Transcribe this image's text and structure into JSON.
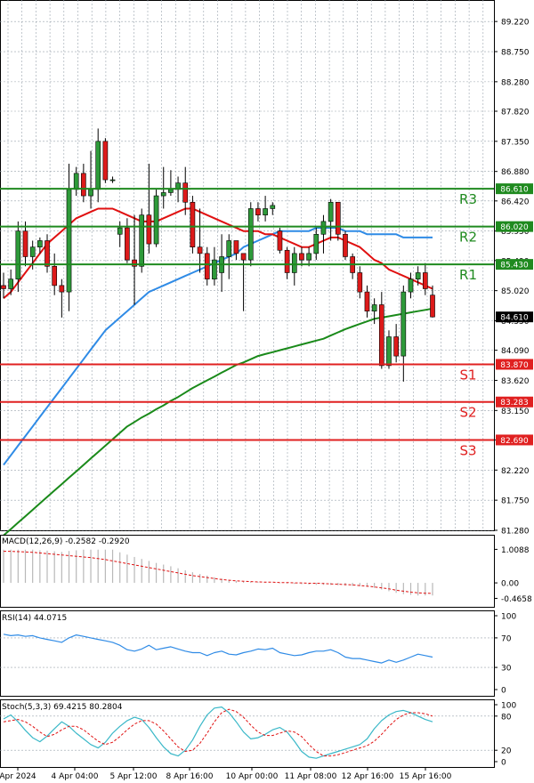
{
  "chart_data": {
    "type": "candlestick",
    "price_panel": {
      "ylim": [
        81.28,
        89.5
      ],
      "ticks": [
        "89.220",
        "88.750",
        "88.280",
        "87.820",
        "87.350",
        "86.880",
        "86.420",
        "85.950",
        "85.490",
        "85.020",
        "84.550",
        "84.090",
        "83.620",
        "83.150",
        "82.690",
        "82.220",
        "81.750",
        "81.280"
      ],
      "current_price": {
        "label": "84.610",
        "value": 84.61
      },
      "levels": [
        {
          "name": "R3",
          "value": 86.61,
          "label": "86.610",
          "color": "#1f8a1f"
        },
        {
          "name": "R2",
          "value": 86.02,
          "label": "86.020",
          "color": "#1f8a1f"
        },
        {
          "name": "R1",
          "value": 85.43,
          "label": "85.430",
          "color": "#1f8a1f"
        },
        {
          "name": "S1",
          "value": 83.87,
          "label": "83.870",
          "color": "#e02020"
        },
        {
          "name": "S2",
          "value": 83.283,
          "label": "83.283",
          "color": "#e02020"
        },
        {
          "name": "S3",
          "value": 82.69,
          "label": "82.690",
          "color": "#e02020"
        }
      ],
      "candles": [
        [
          85.1,
          85.3,
          84.9,
          85.05
        ],
        [
          85.05,
          85.35,
          84.95,
          85.2
        ],
        [
          85.2,
          86.1,
          85.0,
          85.95
        ],
        [
          85.95,
          86.1,
          85.4,
          85.55
        ],
        [
          85.55,
          85.8,
          85.35,
          85.7
        ],
        [
          85.7,
          85.85,
          85.6,
          85.8
        ],
        [
          85.8,
          85.9,
          85.3,
          85.4
        ],
        [
          85.4,
          85.6,
          84.95,
          85.1
        ],
        [
          85.1,
          85.2,
          84.6,
          85.0
        ],
        [
          85.0,
          87.0,
          84.7,
          86.6
        ],
        [
          86.6,
          86.95,
          86.5,
          86.85
        ],
        [
          86.85,
          87.0,
          86.4,
          86.5
        ],
        [
          86.5,
          87.2,
          86.3,
          86.6
        ],
        [
          86.6,
          87.55,
          86.4,
          87.35
        ],
        [
          87.35,
          87.4,
          86.7,
          86.75
        ],
        [
          86.75,
          86.8,
          86.7,
          86.75
        ],
        [
          85.9,
          86.1,
          85.7,
          86.0
        ],
        [
          86.0,
          86.15,
          85.45,
          85.5
        ],
        [
          85.5,
          86.2,
          84.8,
          85.4
        ],
        [
          85.4,
          86.3,
          85.3,
          86.2
        ],
        [
          86.2,
          87.0,
          85.6,
          85.75
        ],
        [
          85.75,
          86.6,
          85.7,
          86.5
        ],
        [
          86.5,
          86.95,
          86.3,
          86.55
        ],
        [
          86.55,
          86.9,
          86.5,
          86.6
        ],
        [
          86.6,
          86.8,
          86.4,
          86.7
        ],
        [
          86.7,
          86.95,
          86.2,
          86.4
        ],
        [
          86.4,
          86.5,
          85.6,
          85.7
        ],
        [
          85.7,
          86.3,
          85.3,
          85.6
        ],
        [
          85.6,
          85.7,
          85.1,
          85.2
        ],
        [
          85.2,
          85.7,
          85.1,
          85.5
        ],
        [
          85.3,
          85.9,
          85.0,
          85.55
        ],
        [
          85.55,
          85.9,
          85.2,
          85.8
        ],
        [
          85.8,
          85.8,
          85.5,
          85.6
        ],
        [
          85.6,
          85.6,
          84.7,
          85.5
        ],
        [
          85.5,
          86.4,
          85.4,
          86.3
        ],
        [
          86.3,
          86.4,
          86.1,
          86.2
        ],
        [
          86.2,
          86.5,
          86.1,
          86.3
        ],
        [
          86.3,
          86.4,
          86.2,
          86.35
        ],
        [
          85.95,
          86.0,
          85.6,
          85.65
        ],
        [
          85.65,
          85.7,
          85.2,
          85.3
        ],
        [
          85.3,
          85.7,
          85.1,
          85.6
        ],
        [
          85.6,
          85.7,
          85.4,
          85.5
        ],
        [
          85.5,
          85.7,
          85.4,
          85.6
        ],
        [
          85.6,
          86.0,
          85.5,
          85.9
        ],
        [
          85.9,
          86.2,
          85.6,
          86.1
        ],
        [
          86.1,
          86.45,
          85.8,
          86.4
        ],
        [
          86.4,
          86.4,
          85.8,
          85.9
        ],
        [
          85.9,
          85.95,
          85.5,
          85.55
        ],
        [
          85.55,
          85.6,
          85.2,
          85.3
        ],
        [
          85.3,
          85.4,
          84.9,
          85.0
        ],
        [
          85.0,
          85.1,
          84.6,
          84.7
        ],
        [
          84.7,
          84.9,
          84.5,
          84.8
        ],
        [
          84.8,
          85.0,
          83.8,
          83.85
        ],
        [
          83.85,
          84.4,
          83.8,
          84.3
        ],
        [
          84.3,
          84.5,
          83.9,
          84.0
        ],
        [
          84.0,
          85.1,
          83.6,
          85.0
        ],
        [
          85.0,
          85.3,
          84.9,
          85.2
        ],
        [
          85.2,
          85.4,
          85.1,
          85.3
        ],
        [
          85.3,
          85.45,
          84.95,
          85.05
        ],
        [
          84.95,
          85.1,
          84.6,
          84.61
        ]
      ],
      "ma_fast": [
        84.9,
        85.0,
        85.15,
        85.3,
        85.45,
        85.6,
        85.75,
        85.85,
        85.95,
        86.05,
        86.15,
        86.2,
        86.25,
        86.3,
        86.3,
        86.3,
        86.25,
        86.2,
        86.15,
        86.1,
        86.1,
        86.1,
        86.15,
        86.2,
        86.25,
        86.3,
        86.3,
        86.25,
        86.2,
        86.15,
        86.1,
        86.05,
        86.0,
        85.95,
        85.95,
        85.95,
        85.9,
        85.9,
        85.85,
        85.8,
        85.75,
        85.7,
        85.7,
        85.75,
        85.8,
        85.85,
        85.85,
        85.8,
        85.75,
        85.7,
        85.6,
        85.5,
        85.45,
        85.35,
        85.3,
        85.25,
        85.2,
        85.15,
        85.1,
        85.05
      ],
      "ma_mid": [
        82.3,
        82.45,
        82.6,
        82.75,
        82.9,
        83.05,
        83.2,
        83.35,
        83.5,
        83.65,
        83.8,
        83.95,
        84.1,
        84.25,
        84.4,
        84.5,
        84.6,
        84.7,
        84.8,
        84.9,
        85.0,
        85.05,
        85.1,
        85.15,
        85.2,
        85.25,
        85.3,
        85.35,
        85.4,
        85.45,
        85.5,
        85.55,
        85.6,
        85.7,
        85.75,
        85.8,
        85.85,
        85.9,
        85.95,
        85.95,
        85.95,
        85.95,
        85.95,
        86.0,
        86.0,
        86.0,
        86.0,
        85.95,
        85.95,
        85.95,
        85.9,
        85.9,
        85.9,
        85.9,
        85.9,
        85.85,
        85.85,
        85.85,
        85.85,
        85.85
      ],
      "ma_slow": [
        81.2,
        81.3,
        81.4,
        81.5,
        81.6,
        81.7,
        81.8,
        81.9,
        82.0,
        82.1,
        82.2,
        82.3,
        82.4,
        82.5,
        82.6,
        82.7,
        82.8,
        82.9,
        82.97,
        83.04,
        83.1,
        83.17,
        83.23,
        83.3,
        83.36,
        83.43,
        83.5,
        83.56,
        83.62,
        83.68,
        83.74,
        83.8,
        83.86,
        83.9,
        83.95,
        84.0,
        84.03,
        84.06,
        84.09,
        84.12,
        84.15,
        84.18,
        84.21,
        84.24,
        84.27,
        84.32,
        84.37,
        84.42,
        84.46,
        84.5,
        84.54,
        84.58,
        84.6,
        84.62,
        84.64,
        84.66,
        84.68,
        84.7,
        84.72,
        84.74
      ]
    },
    "x_labels": [
      "Apr 2024",
      "4 Apr 04:00",
      "5 Apr 12:00",
      "8 Apr 16:00",
      "10 Apr 00:00",
      "11 Apr 08:00",
      "12 Apr 16:00",
      "15 Apr 16:00"
    ],
    "macd": {
      "title": "MACD(12,26,9) -0.2582 -0.2920",
      "ticks": [
        "1.0088",
        "0.00",
        "-0.4658"
      ],
      "ylim": [
        -0.56,
        1.1
      ],
      "histogram": [
        1.0,
        1.0,
        1.0,
        1.0,
        1.0,
        0.98,
        0.97,
        0.95,
        0.93,
        0.96,
        0.98,
        1.0,
        1.0,
        1.0,
        1.0,
        1.0,
        0.92,
        0.85,
        0.78,
        0.72,
        0.66,
        0.6,
        0.55,
        0.5,
        0.44,
        0.38,
        0.32,
        0.27,
        0.22,
        0.17,
        0.13,
        0.09,
        0.06,
        0.04,
        0.03,
        0.02,
        0.01,
        0.0,
        -0.01,
        -0.02,
        -0.03,
        -0.04,
        -0.05,
        -0.06,
        -0.06,
        -0.06,
        -0.07,
        -0.08,
        -0.09,
        -0.1,
        -0.12,
        -0.15,
        -0.2,
        -0.25,
        -0.3,
        -0.34,
        -0.36,
        -0.38,
        -0.38,
        -0.38
      ],
      "signal": [
        0.95,
        0.95,
        0.94,
        0.93,
        0.92,
        0.9,
        0.88,
        0.86,
        0.84,
        0.82,
        0.8,
        0.78,
        0.76,
        0.73,
        0.7,
        0.66,
        0.62,
        0.58,
        0.54,
        0.5,
        0.46,
        0.42,
        0.38,
        0.34,
        0.3,
        0.26,
        0.22,
        0.19,
        0.16,
        0.13,
        0.1,
        0.08,
        0.06,
        0.05,
        0.04,
        0.03,
        0.02,
        0.02,
        0.01,
        0.01,
        0.0,
        0.0,
        -0.01,
        -0.01,
        -0.02,
        -0.03,
        -0.04,
        -0.05,
        -0.06,
        -0.08,
        -0.1,
        -0.12,
        -0.15,
        -0.18,
        -0.22,
        -0.25,
        -0.28,
        -0.3,
        -0.31,
        -0.32
      ]
    },
    "rsi": {
      "title": "RSI(14) 44.0715",
      "ticks": [
        "100",
        "70",
        "30",
        "0"
      ],
      "ylim": [
        0,
        100
      ],
      "values": [
        75,
        73,
        74,
        72,
        73,
        70,
        68,
        66,
        64,
        70,
        74,
        72,
        70,
        68,
        66,
        64,
        60,
        54,
        52,
        55,
        60,
        54,
        56,
        58,
        55,
        52,
        50,
        50,
        46,
        50,
        52,
        48,
        47,
        50,
        52,
        55,
        54,
        56,
        50,
        48,
        46,
        47,
        50,
        52,
        52,
        54,
        50,
        44,
        42,
        42,
        40,
        38,
        36,
        40,
        37,
        40,
        44,
        48,
        46,
        44
      ]
    },
    "stoch": {
      "title": "Stoch(5,3,3) 69.4215 80.2804",
      "ticks": [
        "100",
        "80",
        "20",
        "0"
      ],
      "ylim": [
        0,
        100
      ],
      "k": [
        75,
        82,
        70,
        55,
        42,
        35,
        45,
        58,
        70,
        62,
        50,
        40,
        30,
        24,
        34,
        50,
        62,
        72,
        78,
        74,
        60,
        42,
        26,
        14,
        10,
        20,
        38,
        62,
        82,
        94,
        96,
        86,
        70,
        52,
        40,
        42,
        48,
        56,
        60,
        52,
        36,
        18,
        8,
        6,
        10,
        14,
        18,
        22,
        26,
        30,
        40,
        58,
        72,
        82,
        88,
        90,
        86,
        80,
        74,
        70
      ],
      "d": [
        70,
        72,
        74,
        70,
        62,
        52,
        44,
        48,
        56,
        62,
        62,
        56,
        46,
        36,
        30,
        34,
        44,
        56,
        66,
        72,
        72,
        66,
        54,
        40,
        26,
        18,
        20,
        32,
        50,
        70,
        86,
        92,
        88,
        78,
        64,
        52,
        46,
        46,
        50,
        54,
        52,
        44,
        30,
        18,
        10,
        10,
        12,
        16,
        20,
        24,
        28,
        36,
        48,
        62,
        74,
        82,
        86,
        86,
        84,
        80
      ]
    }
  }
}
